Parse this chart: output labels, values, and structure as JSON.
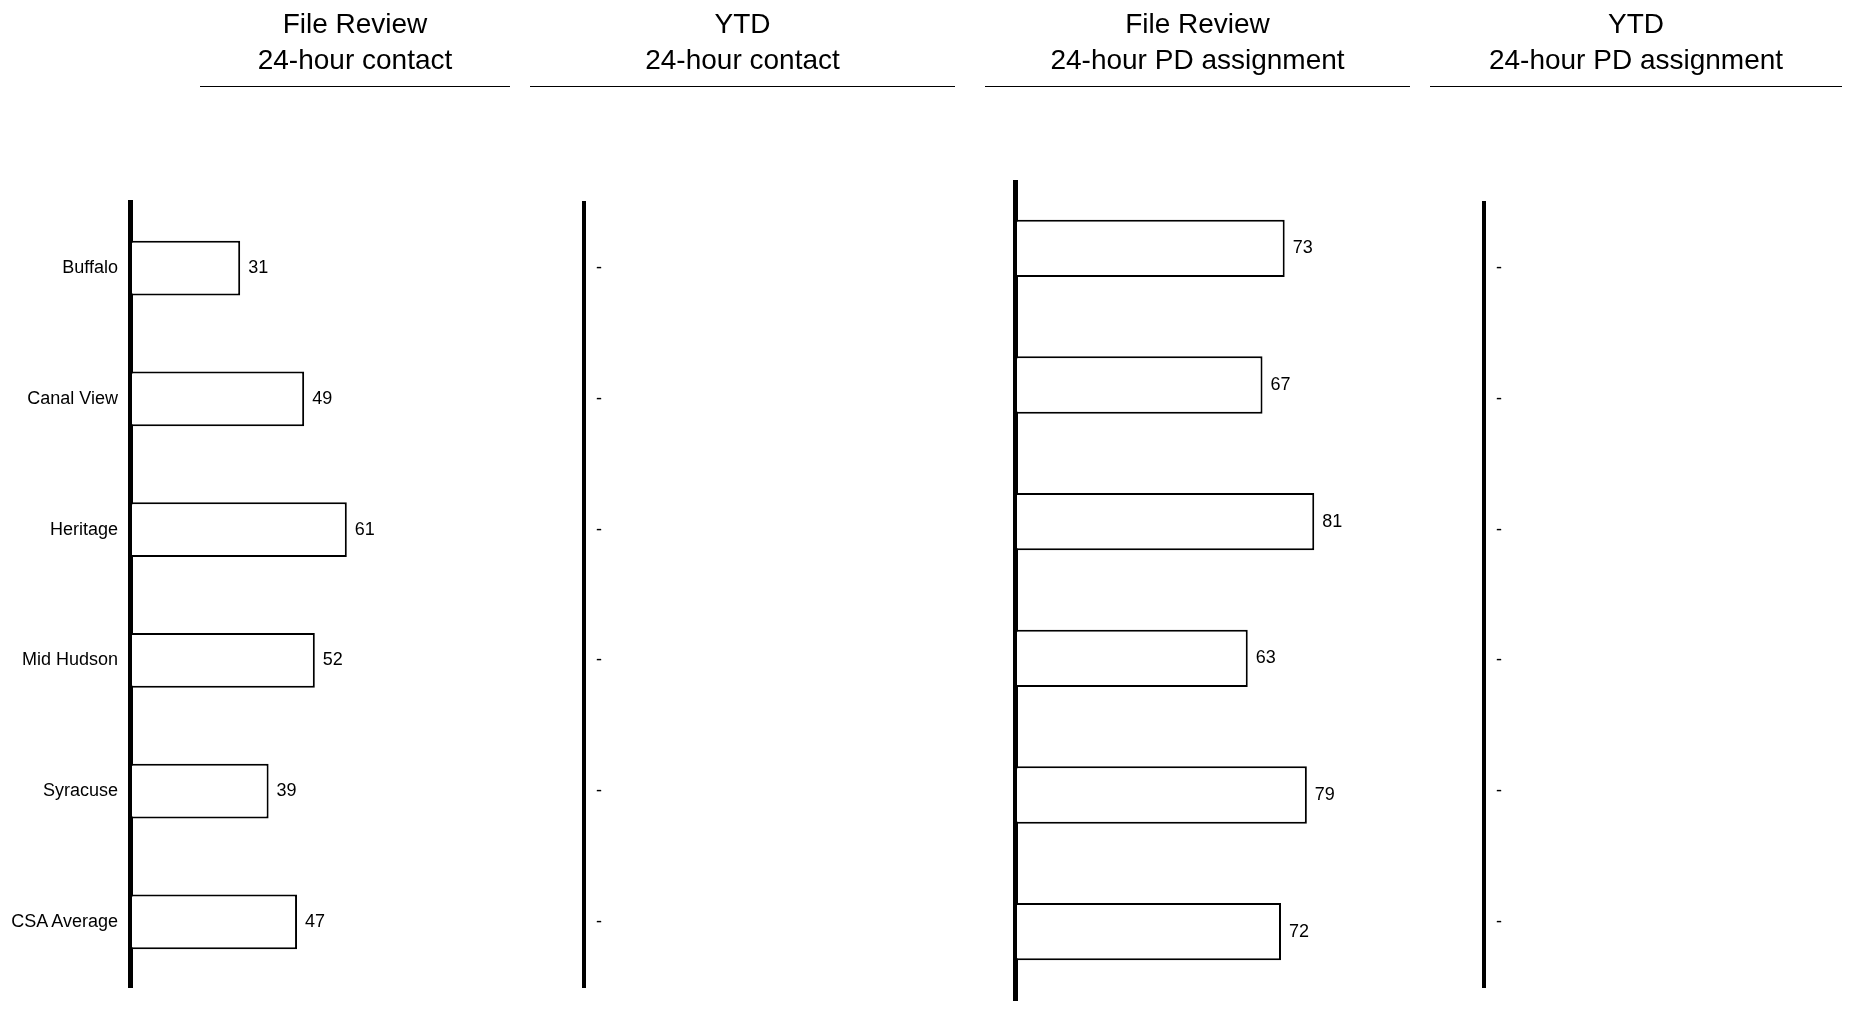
{
  "chart_data": [
    {
      "type": "bar",
      "orientation": "horizontal",
      "title": "File Review\n24-hour contact",
      "categories": [
        "Buffalo",
        "Canal View",
        "Heritage",
        "Mid Hudson",
        "Syracuse",
        "CSA Average"
      ],
      "values": [
        31,
        49,
        61,
        52,
        39,
        47
      ],
      "color": "#ffffff",
      "data_labels": true,
      "grid": false,
      "legend": false,
      "tick_labels": "y"
    },
    {
      "type": "other",
      "title": "YTD\n24-hour contact",
      "categories": [
        null,
        null,
        null,
        null,
        null,
        null
      ],
      "values": [
        null,
        null,
        null,
        null,
        null,
        null
      ],
      "value_labels": [
        "-",
        "-",
        "-",
        "-",
        "-",
        "-"
      ],
      "color": "#ffffff",
      "legend": false
    },
    {
      "type": "bar",
      "orientation": "horizontal",
      "title": "File Review\n24-hour PD assignment",
      "categories": [
        null,
        null,
        null,
        null,
        null,
        null
      ],
      "values": [
        73,
        67,
        81,
        63,
        79,
        72
      ],
      "color": "#ffffff",
      "data_labels": true,
      "grid": false,
      "legend": false,
      "tick_labels": false
    },
    {
      "type": "other",
      "title": "YTD\n24-hour PD assignment",
      "categories": [
        null,
        null,
        null,
        null,
        null,
        null
      ],
      "values": [
        null,
        null,
        null,
        null,
        null,
        null
      ],
      "value_labels": [
        "-",
        "-",
        "-",
        "-",
        "-",
        "-"
      ],
      "color": "#ffffff",
      "legend": false
    }
  ]
}
